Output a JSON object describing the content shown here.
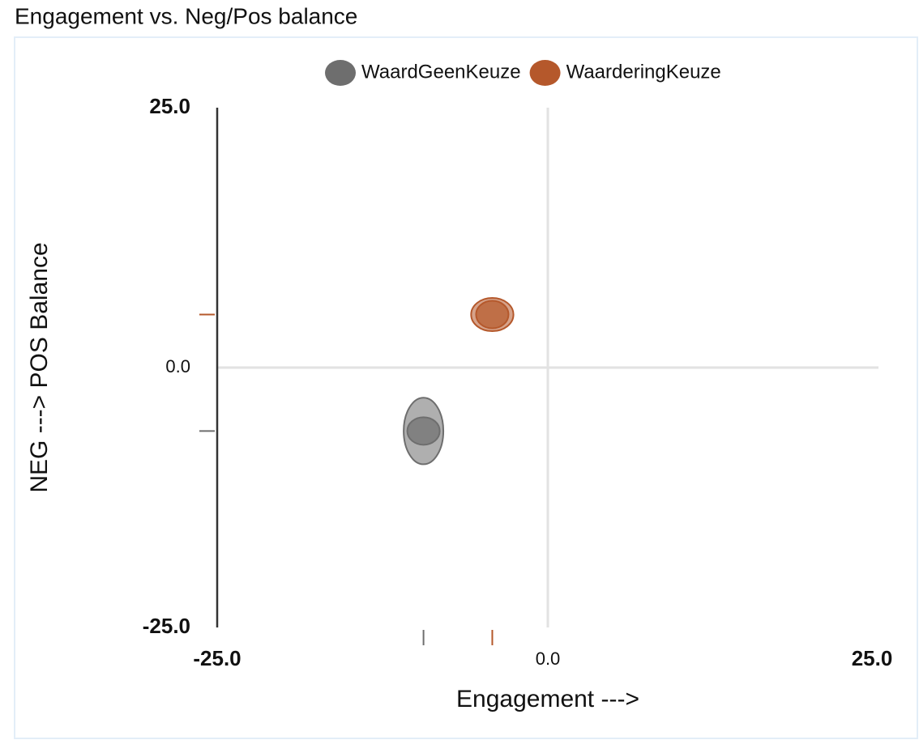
{
  "chart_data": {
    "type": "scatter",
    "title": "Engagement vs. Neg/Pos balance",
    "x_label": "Engagement --->",
    "y_label": "NEG ---> POS Balance",
    "xlim": [
      -25,
      25
    ],
    "ylim": [
      -25,
      25
    ],
    "xticks": [
      {
        "value": -25,
        "label": "-25.0"
      },
      {
        "value": 0,
        "label": "0.0"
      },
      {
        "value": 25,
        "label": "25.0"
      }
    ],
    "yticks": [
      {
        "value": -25,
        "label": "-25.0"
      },
      {
        "value": 0,
        "label": "0.0"
      },
      {
        "value": 25,
        "label": "25.0"
      }
    ],
    "series": [
      {
        "name": "WaardGeenKeuze",
        "color": "#6e6e6e",
        "x": [
          -9.4
        ],
        "values": [
          -6.1
        ],
        "x_error": [
          1.5
        ],
        "y_error": [
          3.2
        ]
      },
      {
        "name": "WaarderingKeuze",
        "color": "#b5582b",
        "x": [
          -4.2
        ],
        "values": [
          5.1
        ],
        "x_error": [
          1.6
        ],
        "y_error": [
          1.6
        ]
      }
    ],
    "legend": "top"
  }
}
